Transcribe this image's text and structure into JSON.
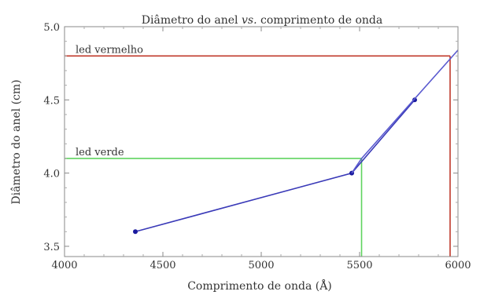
{
  "chart_data": {
    "type": "line",
    "title": "Diâmetro do anel vs. comprimento de onda",
    "title_parts": {
      "before": "Diâmetro do anel ",
      "italic": "vs.",
      "after": " comprimento de onda"
    },
    "xlabel": "Comprimento de onda (Å)",
    "ylabel": "Diâmetro do anel (cm)",
    "xlim": [
      4000,
      6000
    ],
    "ylim": [
      3.43,
      5.0
    ],
    "xticks": [
      4000,
      4500,
      5000,
      5500,
      6000
    ],
    "xtick_labels": [
      "4000",
      "4500",
      "5000",
      "5500",
      "6000"
    ],
    "yticks": [
      3.5,
      4.0,
      4.5,
      5.0
    ],
    "ytick_labels": [
      "3.5",
      "4.0",
      "4.5",
      "5.0"
    ],
    "grid": false,
    "series": [
      {
        "x": [
          4360,
          5460,
          5780
        ],
        "y": [
          3.6,
          4.0,
          4.5
        ],
        "color": "#3a3ab8",
        "markers": true
      },
      {
        "x": [
          5460,
          5510,
          6000
        ],
        "y": [
          4.0,
          4.1,
          4.84
        ],
        "color": "#5a5acf",
        "markers": false
      }
    ],
    "reference_lines": [
      {
        "label": "led vermelho",
        "x": 5960,
        "y": 4.8,
        "color": "#c0392b"
      },
      {
        "label": "led verde",
        "x": 5510,
        "y": 4.1,
        "color": "#5fd35f"
      }
    ]
  }
}
